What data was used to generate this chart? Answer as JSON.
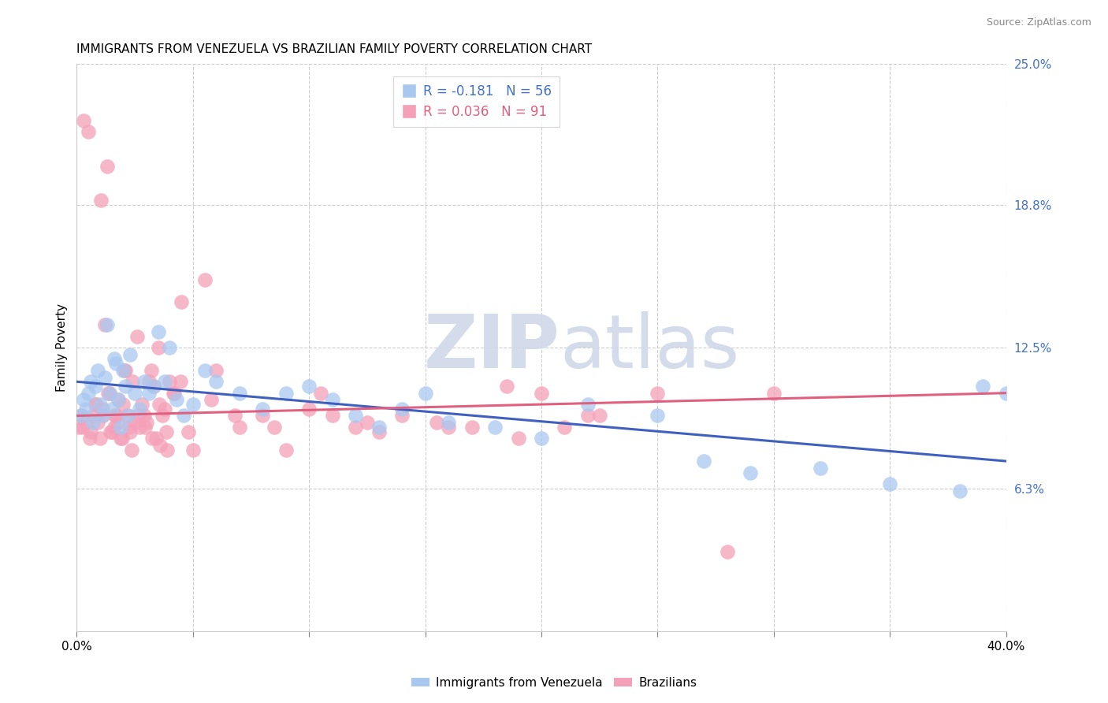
{
  "title": "IMMIGRANTS FROM VENEZUELA VS BRAZILIAN FAMILY POVERTY CORRELATION CHART",
  "source": "Source: ZipAtlas.com",
  "ylabel": "Family Poverty",
  "right_yticks": [
    6.3,
    12.5,
    18.8,
    25.0
  ],
  "right_ytick_labels": [
    "6.3%",
    "12.5%",
    "18.8%",
    "25.0%"
  ],
  "xmin": 0.0,
  "xmax": 40.0,
  "ymin": 0.0,
  "ymax": 25.0,
  "legend_blue_R": "-0.181",
  "legend_blue_N": "56",
  "legend_pink_R": "0.036",
  "legend_pink_N": "91",
  "legend_label_blue": "Immigrants from Venezuela",
  "legend_label_pink": "Brazilians",
  "blue_color": "#a8c8f0",
  "pink_color": "#f4a0b8",
  "blue_line_color": "#4060c0",
  "pink_line_color": "#e06080",
  "watermark_zip": "ZIP",
  "watermark_atlas": "atlas",
  "blue_scatter_x": [
    0.2,
    0.3,
    0.4,
    0.5,
    0.6,
    0.7,
    0.8,
    0.9,
    1.0,
    1.1,
    1.2,
    1.3,
    1.4,
    1.5,
    1.6,
    1.7,
    1.8,
    1.9,
    2.0,
    2.1,
    2.2,
    2.3,
    2.5,
    2.7,
    2.9,
    3.1,
    3.3,
    3.5,
    3.8,
    4.0,
    4.3,
    4.6,
    5.0,
    5.5,
    6.0,
    7.0,
    8.0,
    9.0,
    10.0,
    11.0,
    12.0,
    13.0,
    14.0,
    15.0,
    16.0,
    18.0,
    20.0,
    22.0,
    25.0,
    27.0,
    29.0,
    32.0,
    35.0,
    38.0,
    39.0,
    40.0
  ],
  "blue_scatter_y": [
    9.5,
    10.2,
    9.8,
    10.5,
    11.0,
    9.2,
    10.8,
    11.5,
    10.0,
    9.5,
    11.2,
    13.5,
    10.5,
    9.8,
    12.0,
    11.8,
    10.2,
    9.0,
    11.5,
    10.8,
    9.5,
    12.2,
    10.5,
    9.8,
    11.0,
    10.5,
    10.8,
    13.2,
    11.0,
    12.5,
    10.2,
    9.5,
    10.0,
    11.5,
    11.0,
    10.5,
    9.8,
    10.5,
    10.8,
    10.2,
    9.5,
    9.0,
    9.8,
    10.5,
    9.2,
    9.0,
    8.5,
    10.0,
    9.5,
    7.5,
    7.0,
    7.2,
    6.5,
    6.2,
    10.8,
    10.5
  ],
  "pink_scatter_x": [
    0.1,
    0.2,
    0.3,
    0.4,
    0.5,
    0.6,
    0.7,
    0.8,
    0.9,
    1.0,
    1.1,
    1.2,
    1.3,
    1.4,
    1.5,
    1.6,
    1.7,
    1.8,
    1.9,
    2.0,
    2.1,
    2.2,
    2.3,
    2.4,
    2.5,
    2.6,
    2.7,
    2.8,
    2.9,
    3.0,
    3.1,
    3.2,
    3.3,
    3.4,
    3.5,
    3.6,
    3.7,
    3.8,
    3.9,
    4.0,
    4.2,
    4.5,
    5.0,
    5.5,
    6.0,
    7.0,
    8.0,
    9.0,
    10.0,
    11.0,
    12.0,
    13.0,
    14.0,
    15.5,
    17.0,
    19.0,
    20.0,
    21.0,
    22.5,
    25.0,
    0.25,
    0.55,
    0.85,
    1.15,
    1.45,
    1.75,
    2.05,
    2.35,
    2.65,
    2.95,
    3.25,
    3.55,
    3.85,
    4.15,
    4.45,
    1.05,
    1.35,
    1.65,
    1.95,
    2.25,
    4.8,
    5.8,
    6.8,
    8.5,
    10.5,
    12.5,
    16.0,
    18.5,
    22.0,
    28.0,
    30.0
  ],
  "pink_scatter_y": [
    9.0,
    9.5,
    22.5,
    9.2,
    22.0,
    8.8,
    9.5,
    10.0,
    9.2,
    8.5,
    9.8,
    13.5,
    20.5,
    10.5,
    8.8,
    9.0,
    9.5,
    10.2,
    8.5,
    10.0,
    11.5,
    9.5,
    8.8,
    11.0,
    9.2,
    13.0,
    9.0,
    10.0,
    9.5,
    9.2,
    11.0,
    11.5,
    10.8,
    8.5,
    12.5,
    8.2,
    9.5,
    9.8,
    8.0,
    11.0,
    10.5,
    14.5,
    8.0,
    15.5,
    11.5,
    9.0,
    9.5,
    8.0,
    9.8,
    9.5,
    9.0,
    8.8,
    9.5,
    9.2,
    9.0,
    8.5,
    10.5,
    9.0,
    9.5,
    10.5,
    9.0,
    8.5,
    10.0,
    9.5,
    8.8,
    9.2,
    11.5,
    8.0,
    9.5,
    9.0,
    8.5,
    10.0,
    8.8,
    10.5,
    11.0,
    19.0,
    10.5,
    9.5,
    8.5,
    9.0,
    8.8,
    10.2,
    9.5,
    9.0,
    10.5,
    9.2,
    9.0,
    10.8,
    9.5,
    3.5,
    10.5
  ],
  "blue_trend_x": [
    0.0,
    40.0
  ],
  "blue_trend_y": [
    11.0,
    7.5
  ],
  "pink_trend_x": [
    0.0,
    40.0
  ],
  "pink_trend_y": [
    9.5,
    10.5
  ]
}
